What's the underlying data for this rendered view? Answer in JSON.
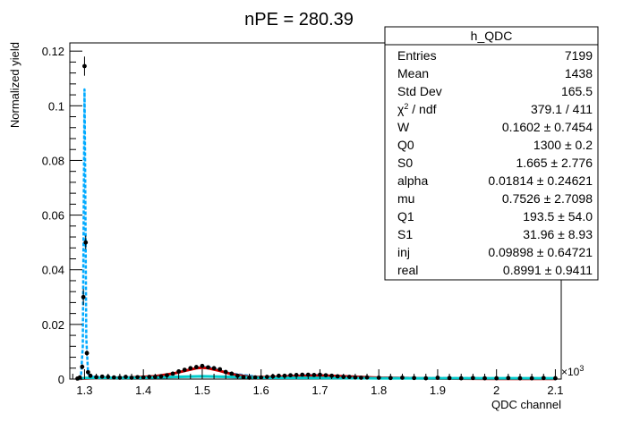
{
  "chart_data": {
    "type": "scatter",
    "title": "nPE = 280.39",
    "xlabel": "QDC channel",
    "ylabel": "Normalized yield",
    "x_exponent_label": "×10",
    "x_exponent_power": "3",
    "xlim": [
      1275,
      2110
    ],
    "ylim": [
      0,
      0.123
    ],
    "x_ticks": [
      1300,
      1400,
      1500,
      1600,
      1700,
      1800,
      1900,
      2000,
      2100
    ],
    "x_tick_labels": [
      "1.3",
      "1.4",
      "1.5",
      "1.6",
      "1.7",
      "1.8",
      "1.9",
      "2",
      "2.1"
    ],
    "y_ticks": [
      0,
      0.02,
      0.04,
      0.06,
      0.08,
      0.1,
      0.12
    ],
    "y_tick_labels": [
      "0",
      "0.02",
      "0.04",
      "0.06",
      "0.08",
      "0.1",
      "0.12"
    ],
    "grid": false,
    "stats_box": {
      "title": "h_QDC",
      "rows": [
        {
          "label": "Entries",
          "value": "7199"
        },
        {
          "label": "Mean",
          "value": "1438"
        },
        {
          "label": "Std Dev",
          "value": "165.5"
        },
        {
          "label": "χ² / ndf",
          "value": "379.1 / 411"
        },
        {
          "label": "W",
          "value": "0.1602  ± 0.7454"
        },
        {
          "label": "Q0",
          "value": "1300  ± 0.2"
        },
        {
          "label": "S0",
          "value": "1.665  ± 2.776"
        },
        {
          "label": "alpha",
          "value": "0.01814  ± 0.24621"
        },
        {
          "label": "mu",
          "value": "0.7526  ± 2.7098"
        },
        {
          "label": "Q1",
          "value": "193.5  ± 54.0"
        },
        {
          "label": "S1",
          "value": "31.96  ± 8.93"
        },
        {
          "label": "inj",
          "value": "0.09898  ± 0.64721"
        },
        {
          "label": "real",
          "value": "0.8991  ± 0.9411"
        }
      ]
    },
    "series": [
      {
        "kind": "data points with error bars",
        "color": "#000000",
        "x": [
          1288,
          1292,
          1296,
          1298,
          1300,
          1302,
          1304,
          1306,
          1310,
          1320,
          1330,
          1340,
          1350,
          1360,
          1370,
          1380,
          1390,
          1400,
          1410,
          1420,
          1430,
          1440,
          1450,
          1460,
          1470,
          1480,
          1490,
          1500,
          1510,
          1520,
          1530,
          1540,
          1550,
          1560,
          1570,
          1580,
          1590,
          1600,
          1610,
          1620,
          1630,
          1640,
          1650,
          1660,
          1670,
          1680,
          1690,
          1700,
          1710,
          1720,
          1730,
          1740,
          1750,
          1760,
          1770,
          1780,
          1800,
          1820,
          1840,
          1860,
          1880,
          1900,
          1920,
          1940,
          1960,
          1980,
          2000,
          2020,
          2040,
          2060,
          2080,
          2100
        ],
        "y": [
          0.0002,
          0.0006,
          0.0045,
          0.03,
          0.1145,
          0.05,
          0.0095,
          0.0025,
          0.0012,
          0.0007,
          0.0009,
          0.0008,
          0.0006,
          0.0005,
          0.0008,
          0.0005,
          0.0007,
          0.0006,
          0.0008,
          0.0008,
          0.001,
          0.0014,
          0.002,
          0.0028,
          0.0034,
          0.004,
          0.0044,
          0.0048,
          0.0043,
          0.004,
          0.0036,
          0.0026,
          0.002,
          0.0012,
          0.0007,
          0.0005,
          0.0006,
          0.0006,
          0.0008,
          0.001,
          0.0012,
          0.0012,
          0.0014,
          0.0015,
          0.0016,
          0.0016,
          0.0015,
          0.0016,
          0.0014,
          0.0012,
          0.001,
          0.0008,
          0.0008,
          0.0006,
          0.0005,
          0.0006,
          0.0005,
          0.0004,
          0.0005,
          0.0004,
          0.0003,
          0.0005,
          0.0004,
          0.0003,
          0.0004,
          0.0003,
          0.0003,
          0.0004,
          0.0003,
          0.0003,
          0.0004,
          0.0003
        ],
        "y_error": [
          0.0002,
          0.0003,
          0.0009,
          0.003,
          0.0035,
          0.0025,
          0.001,
          0.0005,
          0.0004,
          0.0003,
          0.0003,
          0.0003,
          0.0003,
          0.0003,
          0.0003,
          0.0003,
          0.0003,
          0.0003,
          0.0003,
          0.0003,
          0.0004,
          0.0004,
          0.0005,
          0.0006,
          0.0006,
          0.0007,
          0.0007,
          0.0007,
          0.0007,
          0.0006,
          0.0006,
          0.0005,
          0.0005,
          0.0004,
          0.0003,
          0.0003,
          0.0003,
          0.0003,
          0.0003,
          0.0004,
          0.0004,
          0.0004,
          0.0004,
          0.0004,
          0.0004,
          0.0004,
          0.0004,
          0.0004,
          0.0004,
          0.0004,
          0.0003,
          0.0003,
          0.0003,
          0.0003,
          0.0003,
          0.0003,
          0.0003,
          0.0002,
          0.0003,
          0.0002,
          0.0002,
          0.0003,
          0.0002,
          0.0002,
          0.0002,
          0.0002,
          0.0002,
          0.0002,
          0.0002,
          0.0002,
          0.0002,
          0.0002
        ]
      },
      {
        "kind": "fit curve (total)",
        "color": "#00aaff",
        "dashed": true,
        "x": [
          1288,
          1294,
          1297,
          1299,
          1300,
          1301,
          1303,
          1306,
          1310,
          1320,
          1400,
          1450,
          1480,
          1500,
          1520,
          1550,
          1600,
          1650,
          1700,
          1750,
          1800,
          1900,
          2000,
          2100
        ],
        "y": [
          0.0002,
          0.0012,
          0.012,
          0.075,
          0.106,
          0.078,
          0.015,
          0.002,
          0.0009,
          0.0007,
          0.0007,
          0.0018,
          0.0035,
          0.0044,
          0.004,
          0.002,
          0.0007,
          0.0012,
          0.0015,
          0.001,
          0.0005,
          0.0004,
          0.0003,
          0.0003
        ]
      },
      {
        "kind": "component curve",
        "color": "#cc0000",
        "x": [
          1288,
          1310,
          1340,
          1380,
          1420,
          1450,
          1470,
          1490,
          1500,
          1510,
          1530,
          1550,
          1580,
          1610,
          1650,
          1700,
          1750,
          1800,
          1900,
          2000,
          2100
        ],
        "y": [
          0.0001,
          0.0003,
          0.0004,
          0.0006,
          0.001,
          0.002,
          0.003,
          0.004,
          0.0042,
          0.004,
          0.003,
          0.0018,
          0.0008,
          0.0007,
          0.001,
          0.0013,
          0.0009,
          0.0005,
          0.0002,
          0.0001,
          0.0001
        ]
      },
      {
        "kind": "component curve",
        "color": "#00cccc",
        "x": [
          1290,
          1300,
          1320,
          1400,
          1450,
          1500,
          1550,
          1600,
          1700,
          1800,
          1900,
          2000,
          2100
        ],
        "y": [
          0.0001,
          0.0004,
          0.0004,
          0.0005,
          0.0008,
          0.001,
          0.0008,
          0.0005,
          0.0004,
          0.0003,
          0.0003,
          0.0003,
          0.0003
        ]
      }
    ]
  }
}
